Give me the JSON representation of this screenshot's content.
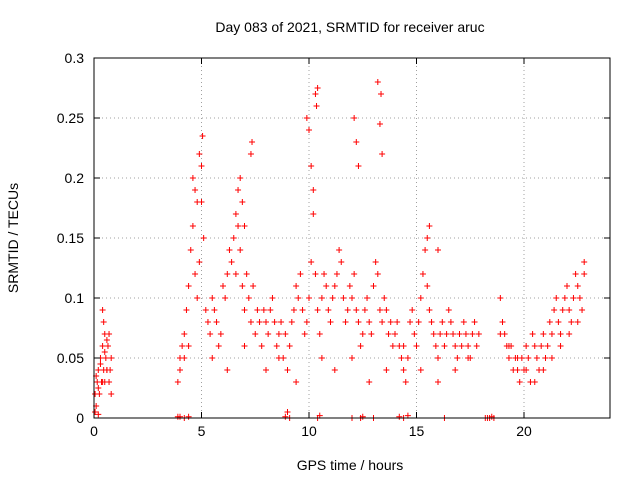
{
  "chart_data": {
    "type": "scatter",
    "title": "Day 083 of 2021, SRMTID for receiver aruc",
    "xlabel": "GPS time / hours",
    "ylabel": "SRMTID / TECUs",
    "xlim": [
      0,
      24
    ],
    "ylim": [
      0,
      0.3
    ],
    "xticks": [
      0,
      5,
      10,
      15,
      20
    ],
    "xtick_labels": [
      "0",
      "5",
      "10",
      "15",
      "20"
    ],
    "yticks": [
      0,
      0.05,
      0.1,
      0.15,
      0.2,
      0.25,
      0.3
    ],
    "ytick_labels": [
      "0",
      "0.05",
      "0.1",
      "0.15",
      "0.2",
      "0.25",
      "0.3"
    ],
    "grid": true,
    "marker": "+",
    "color": "#ff0000",
    "series": [
      {
        "name": "SRMTID",
        "x": [
          0.05,
          0.1,
          0.15,
          0.2,
          0.25,
          0.3,
          0.35,
          0.4,
          0.45,
          0.5,
          0.55,
          0.6,
          0.65,
          0.7,
          0.75,
          0.8,
          0.1,
          0.2,
          0.3,
          0.4,
          0.5,
          0.6,
          0.7,
          0.8,
          0.4,
          0.45,
          0.5,
          0.6,
          3.9,
          4.0,
          4.1,
          4.2,
          4.3,
          4.4,
          4.5,
          4.6,
          4.7,
          4.8,
          4.9,
          5.0,
          5.1,
          5.2,
          5.3,
          5.4,
          5.5,
          5.6,
          5.7,
          5.8,
          5.9,
          6.0,
          6.1,
          6.2,
          6.3,
          6.4,
          6.5,
          6.6,
          6.7,
          6.8,
          6.9,
          7.0,
          7.1,
          7.2,
          7.3,
          7.4,
          7.5,
          7.6,
          7.7,
          7.8,
          7.9,
          8.0,
          8.1,
          8.2,
          8.3,
          8.4,
          8.5,
          8.6,
          8.7,
          8.8,
          8.9,
          9.0,
          9.1,
          9.2,
          9.3,
          9.4,
          9.5,
          9.6,
          9.7,
          9.8,
          9.9,
          10.0,
          10.1,
          10.2,
          10.3,
          10.4,
          10.5,
          10.6,
          10.7,
          10.8,
          10.9,
          11.0,
          11.1,
          11.2,
          11.3,
          11.4,
          11.5,
          11.6,
          11.7,
          11.8,
          11.9,
          12.0,
          12.1,
          12.2,
          12.3,
          12.4,
          12.5,
          12.6,
          12.7,
          12.8,
          12.9,
          13.0,
          13.1,
          13.2,
          13.3,
          13.4,
          13.5,
          13.6,
          13.7,
          13.8,
          13.9,
          14.0,
          14.1,
          14.2,
          14.3,
          14.4,
          14.5,
          14.6,
          14.7,
          14.8,
          14.9,
          15.0,
          15.1,
          15.2,
          15.3,
          15.4,
          15.5,
          15.6,
          15.7,
          15.8,
          15.9,
          16.0,
          16.1,
          16.2,
          16.3,
          16.4,
          16.5,
          16.6,
          16.7,
          16.8,
          16.9,
          17.0,
          17.1,
          17.2,
          17.3,
          17.4,
          17.5,
          17.6,
          17.7,
          17.8,
          17.9,
          4.6,
          4.7,
          4.8,
          4.9,
          5.0,
          5.05,
          6.6,
          6.7,
          6.8,
          6.9,
          7.0,
          7.3,
          7.35,
          9.9,
          10.0,
          10.1,
          10.2,
          10.3,
          10.35,
          10.4,
          12.1,
          12.2,
          12.3,
          13.2,
          13.3,
          13.35,
          13.4,
          15.5,
          15.6,
          16.0,
          4.0,
          4.2,
          4.4,
          5.5,
          6.2,
          7.0,
          8.0,
          8.6,
          9.4,
          10.6,
          11.2,
          12.0,
          12.8,
          13.6,
          14.4,
          15.2,
          16.0,
          16.8,
          17.4,
          18.9,
          19.0,
          19.1,
          19.2,
          19.3,
          19.4,
          19.5,
          19.6,
          19.7,
          19.8,
          19.9,
          20.0,
          20.1,
          20.2,
          20.3,
          20.4,
          20.5,
          20.6,
          20.7,
          20.8,
          20.9,
          21.0,
          21.1,
          21.2,
          21.3,
          21.4,
          21.5,
          21.6,
          21.7,
          21.8,
          21.9,
          22.0,
          22.1,
          22.2,
          22.3,
          22.4,
          22.5,
          22.6,
          22.7,
          22.8,
          18.9,
          19.3,
          19.7,
          20.1,
          20.5,
          20.9,
          21.3,
          21.7,
          22.1,
          22.5,
          22.8,
          0.05,
          0.2,
          3.9,
          4.0,
          4.2,
          4.4,
          8.9,
          9.0,
          9.1,
          10.4,
          10.5,
          12.0,
          12.4,
          12.5,
          13.0,
          14.2,
          14.4,
          14.6,
          16.3,
          18.2,
          18.3,
          18.4,
          18.5,
          18.6
        ],
        "y": [
          0.02,
          0.01,
          0.03,
          0.04,
          0.02,
          0.05,
          0.03,
          0.06,
          0.04,
          0.03,
          0.05,
          0.04,
          0.06,
          0.03,
          0.04,
          0.02,
          0.035,
          0.025,
          0.045,
          0.03,
          0.055,
          0.04,
          0.07,
          0.05,
          0.09,
          0.08,
          0.07,
          0.065,
          0.03,
          0.05,
          0.06,
          0.05,
          0.09,
          0.11,
          0.14,
          0.16,
          0.12,
          0.1,
          0.13,
          0.18,
          0.15,
          0.09,
          0.08,
          0.07,
          0.1,
          0.09,
          0.08,
          0.06,
          0.07,
          0.11,
          0.1,
          0.12,
          0.14,
          0.13,
          0.15,
          0.12,
          0.16,
          0.14,
          0.11,
          0.09,
          0.12,
          0.1,
          0.08,
          0.11,
          0.07,
          0.09,
          0.08,
          0.06,
          0.09,
          0.08,
          0.07,
          0.09,
          0.1,
          0.08,
          0.06,
          0.07,
          0.08,
          0.05,
          0.07,
          0.04,
          0.06,
          0.08,
          0.09,
          0.11,
          0.1,
          0.12,
          0.09,
          0.07,
          0.08,
          0.1,
          0.13,
          0.17,
          0.12,
          0.09,
          0.07,
          0.1,
          0.12,
          0.11,
          0.09,
          0.08,
          0.1,
          0.11,
          0.12,
          0.14,
          0.13,
          0.1,
          0.08,
          0.09,
          0.11,
          0.1,
          0.12,
          0.09,
          0.08,
          0.06,
          0.07,
          0.09,
          0.1,
          0.08,
          0.07,
          0.11,
          0.13,
          0.12,
          0.09,
          0.08,
          0.1,
          0.09,
          0.07,
          0.08,
          0.06,
          0.07,
          0.08,
          0.06,
          0.05,
          0.04,
          0.03,
          0.05,
          0.08,
          0.09,
          0.07,
          0.06,
          0.08,
          0.1,
          0.12,
          0.14,
          0.11,
          0.09,
          0.08,
          0.07,
          0.06,
          0.05,
          0.07,
          0.08,
          0.06,
          0.07,
          0.09,
          0.08,
          0.07,
          0.06,
          0.05,
          0.07,
          0.06,
          0.08,
          0.07,
          0.06,
          0.05,
          0.07,
          0.08,
          0.06,
          0.07,
          0.2,
          0.19,
          0.18,
          0.22,
          0.21,
          0.235,
          0.17,
          0.19,
          0.2,
          0.18,
          0.16,
          0.22,
          0.23,
          0.25,
          0.24,
          0.21,
          0.19,
          0.27,
          0.26,
          0.275,
          0.25,
          0.23,
          0.21,
          0.28,
          0.245,
          0.27,
          0.22,
          0.15,
          0.16,
          0.14,
          0.04,
          0.07,
          0.06,
          0.05,
          0.04,
          0.06,
          0.04,
          0.05,
          0.03,
          0.05,
          0.04,
          0.05,
          0.03,
          0.04,
          0.06,
          0.04,
          0.03,
          0.04,
          0.05,
          0.1,
          0.08,
          0.07,
          0.06,
          0.05,
          0.06,
          0.04,
          0.05,
          0.04,
          0.03,
          0.05,
          0.04,
          0.06,
          0.05,
          0.03,
          0.07,
          0.06,
          0.05,
          0.04,
          0.06,
          0.07,
          0.05,
          0.06,
          0.08,
          0.07,
          0.09,
          0.1,
          0.08,
          0.07,
          0.09,
          0.1,
          0.11,
          0.09,
          0.08,
          0.1,
          0.12,
          0.11,
          0.1,
          0.09,
          0.12,
          0.07,
          0.06,
          0.05,
          0.04,
          0.03,
          0.04,
          0.05,
          0.06,
          0.07,
          0.08,
          0.13,
          0.005,
          0.003,
          0.001,
          0.001,
          0.0,
          0.001,
          0.001,
          0.005,
          0.0,
          0.0,
          0.002,
          0.0,
          0.0,
          0.001,
          0.0,
          0.001,
          0.0,
          0.002,
          0.0,
          0.0,
          0.0,
          0.0,
          0.001,
          0.0
        ]
      }
    ]
  }
}
